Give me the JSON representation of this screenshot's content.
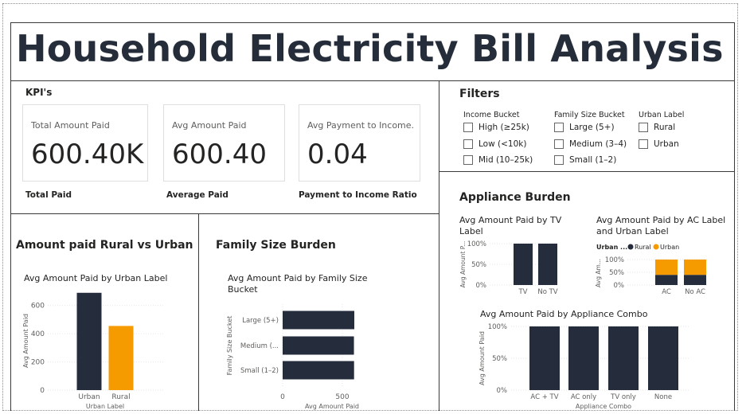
{
  "header": {
    "title": "Household Electricity Bill Analysis"
  },
  "kpis": {
    "section_title": "KPI's",
    "cards": [
      {
        "label": "Total Amount Paid",
        "value": "600.40K",
        "caption": "Total Paid"
      },
      {
        "label": "Avg Amount Paid",
        "value": "600.40",
        "caption": "Average Paid"
      },
      {
        "label": "Avg Payment to Income...",
        "value": "0.04",
        "caption": "Payment to Income Ratio"
      }
    ]
  },
  "filters": {
    "section_title": "Filters",
    "groups": [
      {
        "label": "Income Bucket",
        "options": [
          "High (≥25k)",
          "Low (<10k)",
          "Mid (10–25k)"
        ]
      },
      {
        "label": "Family Size Bucket",
        "options": [
          "Large (5+)",
          "Medium (3–4)",
          "Small (1–2)"
        ]
      },
      {
        "label": "Urban Label",
        "options": [
          "Rural",
          "Urban"
        ]
      }
    ]
  },
  "sections": {
    "rural_urban": "Amount paid Rural vs Urban",
    "family_size": "Family Size Burden",
    "appliance": "Appliance Burden"
  },
  "colors": {
    "navy": "#252d3d",
    "orange": "#f59b00"
  },
  "chart_data": [
    {
      "id": "urban",
      "type": "bar",
      "title": "Avg Amount Paid by Urban Label",
      "xlabel": "Urban Label",
      "ylabel": "Avg Amount Paid",
      "categories": [
        "Urban",
        "Rural"
      ],
      "values": [
        690,
        455
      ],
      "bar_colors": [
        "#252d3d",
        "#f59b00"
      ],
      "ylim": [
        0,
        700
      ],
      "yticks": [
        0,
        200,
        400,
        600
      ]
    },
    {
      "id": "family",
      "type": "bar",
      "orientation": "horizontal",
      "title": "Avg Amount Paid by Family Size Bucket",
      "xlabel": "Avg Amount Paid",
      "ylabel": "Family Size Bucket",
      "categories": [
        "Large (5+)",
        "Medium (...",
        "Small (1–2)"
      ],
      "values": [
        600,
        597,
        598
      ],
      "xticks": [
        0,
        500
      ]
    },
    {
      "id": "tv",
      "type": "bar",
      "title": "Avg Amount Paid by TV Label",
      "ylabel": "Avg Amount P...",
      "categories": [
        "TV",
        "No TV"
      ],
      "values": [
        100,
        100
      ],
      "yticks": [
        "0%",
        "50%",
        "100%"
      ]
    },
    {
      "id": "ac",
      "type": "bar",
      "stacked": true,
      "title": "Avg Amount Paid by AC Label and Urban Label",
      "ylabel": "Avg Am...",
      "legend_title": "Urban ...",
      "categories": [
        "AC",
        "No AC"
      ],
      "series": [
        {
          "name": "Rural",
          "values": [
            40,
            40
          ]
        },
        {
          "name": "Urban",
          "values": [
            60,
            60
          ]
        }
      ],
      "yticks": [
        "0%",
        "50%",
        "100%"
      ]
    },
    {
      "id": "combo",
      "type": "bar",
      "title": "Avg Amount Paid by Appliance Combo",
      "xlabel": "Appliance Combo",
      "ylabel": "Avg Amount Paid",
      "categories": [
        "AC + TV",
        "AC only",
        "TV only",
        "None"
      ],
      "values": [
        100,
        100,
        100,
        100
      ],
      "yticks": [
        "0%",
        "50%",
        "100%"
      ]
    }
  ]
}
